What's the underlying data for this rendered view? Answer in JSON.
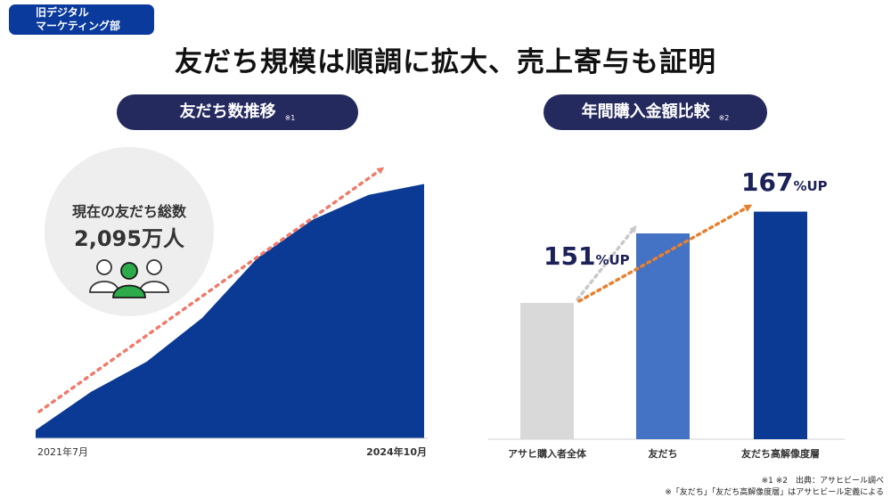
{
  "department": {
    "line1": "旧デジタル",
    "line2": "マーケティング部"
  },
  "title": "友だち規模は順調に拡大、売上寄与も証明",
  "left_panel": {
    "pill_label": "友だち数推移",
    "pill_note": "※1",
    "callout_label": "現在の友だち総数",
    "callout_value": "2,095万人",
    "x_start_label": "2021年7月",
    "x_end_label": "2024年10月"
  },
  "right_panel": {
    "pill_label": "年間購入金額比較",
    "pill_note": "※2",
    "up_label_1": {
      "number": "151",
      "suffix": "%UP"
    },
    "up_label_2": {
      "number": "167",
      "suffix": "%UP"
    }
  },
  "footnotes": {
    "line1": "※1 ※2　出典：アサヒビール調べ",
    "line2": "※「友だち」「友だち高解像度層」はアサヒビール定義による"
  },
  "colors": {
    "navy": "#0b3a94",
    "blue": "#4472c4",
    "gray_bar": "#d9d9d9",
    "arrow_red": "#ef7b6b",
    "arrow_orange": "#e8802e",
    "arrow_gray": "#c8c8c8",
    "green_person": "#2daa4a",
    "circle_bg": "#eeeeee",
    "pill_bg": "#252a5e"
  },
  "chart_data": [
    {
      "type": "area",
      "title": "友だち数推移",
      "x_range": [
        "2021年7月",
        "2024年10月"
      ],
      "values": [
        3,
        17,
        28,
        44,
        66,
        80,
        89,
        93
      ],
      "note": "y-axis unlabeled; relative growth curve"
    },
    {
      "type": "bar",
      "title": "年間購入金額比較",
      "categories": [
        "アサヒ購入者全体",
        "友だち",
        "友だち高解像度層"
      ],
      "values": [
        100,
        151,
        167
      ],
      "ylim": [
        0,
        185
      ]
    }
  ]
}
